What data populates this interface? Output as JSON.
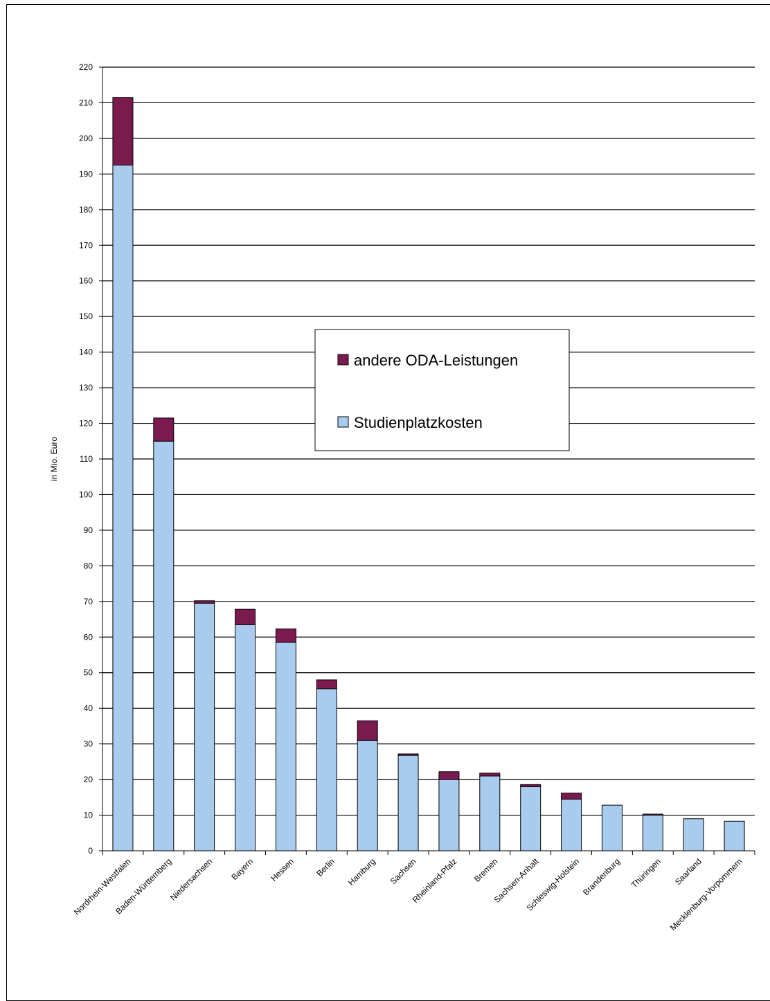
{
  "chart_data": {
    "type": "bar",
    "stacked": true,
    "categories": [
      "Nordrhein-Westfalen",
      "Baden-Württemberg",
      "Niedersachsen",
      "Bayern",
      "Hessen",
      "Berlin",
      "Hamburg",
      "Sachsen",
      "Rheinland-Pfalz",
      "Bremen",
      "Sachsen-Anhalt",
      "Schleswig-Holstein",
      "Brandenburg",
      "Thüringen",
      "Saarland",
      "Mecklenburg-Vorpommern"
    ],
    "series": [
      {
        "name": "Studienplatzkosten",
        "color": "#a9cbee",
        "values": [
          192.5,
          115,
          69.5,
          63.5,
          58.5,
          45.5,
          31,
          26.8,
          20,
          21,
          18,
          14.5,
          12.8,
          10,
          9,
          8.3
        ]
      },
      {
        "name": "andere ODA-Leistungen",
        "color": "#7b1a4f",
        "values": [
          19,
          6.5,
          0.7,
          4.3,
          3.8,
          2.5,
          5.5,
          0.4,
          2.2,
          0.8,
          0.6,
          1.7,
          0,
          0.3,
          0,
          0
        ]
      }
    ],
    "ylabel": "in Mio. Euro",
    "ylim": [
      0,
      220
    ],
    "ytick_step": 10,
    "grid": true,
    "legend": {
      "position": "center",
      "items": [
        "andere ODA-Leistungen",
        "Studienplatzkosten"
      ]
    }
  }
}
